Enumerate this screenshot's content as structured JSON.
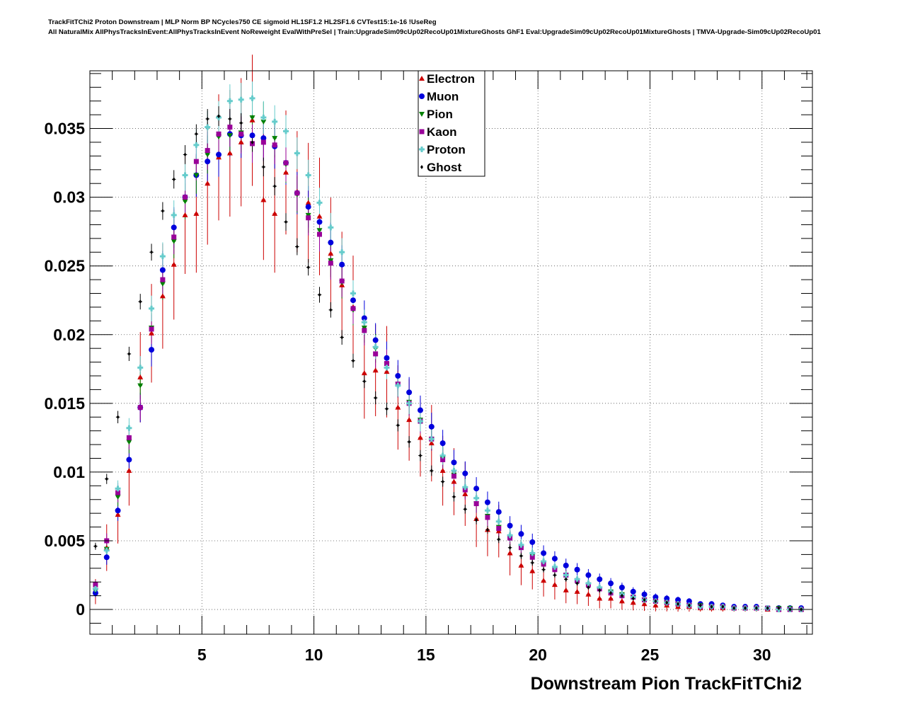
{
  "header": {
    "line1": "TrackFitTChi2 Proton Downstream | MLP Norm BP NCycles750 CE sigmoid HL1SF1.2 HL2SF1.6 CVTest15:1e-16 !UseReg",
    "line2": "All NaturalMix AllPhysTracksInEvent:AllPhysTracksInEvent NoReweight EvalWithPreSel | Train:UpgradeSim09cUp02RecoUp01MixtureGhosts GhF1 Eval:UpgradeSim09cUp02RecoUp01MixtureGhosts | TMVA-Upgrade-Sim09cUp02RecoUp01"
  },
  "chart_data": {
    "type": "scatter",
    "xlabel": "Downstream Pion TrackFitTChi2",
    "ylabel": "",
    "xlim": [
      0,
      32.25
    ],
    "ylim": [
      -0.0018,
      0.0392
    ],
    "xticks": [
      5,
      10,
      15,
      20,
      25,
      30
    ],
    "xtick_labels": [
      "5",
      "10",
      "15",
      "20",
      "25",
      "30"
    ],
    "yticks": [
      0,
      0.005,
      0.01,
      0.015,
      0.02,
      0.025,
      0.03,
      0.035
    ],
    "ytick_labels": [
      "0",
      "0.005",
      "0.01",
      "0.015",
      "0.02",
      "0.025",
      "0.03",
      "0.035"
    ],
    "grid": true,
    "legend_position": "top-center",
    "bin_width": 0.5,
    "x": [
      0.25,
      0.75,
      1.25,
      1.75,
      2.25,
      2.75,
      3.25,
      3.75,
      4.25,
      4.75,
      5.25,
      5.75,
      6.25,
      6.75,
      7.25,
      7.75,
      8.25,
      8.75,
      9.25,
      9.75,
      10.25,
      10.75,
      11.25,
      11.75,
      12.25,
      12.75,
      13.25,
      13.75,
      14.25,
      14.75,
      15.25,
      15.75,
      16.25,
      16.75,
      17.25,
      17.75,
      18.25,
      18.75,
      19.25,
      19.75,
      20.25,
      20.75,
      21.25,
      21.75,
      22.25,
      22.75,
      23.25,
      23.75,
      24.25,
      24.75,
      25.25,
      25.75,
      26.25,
      26.75,
      27.25,
      27.75,
      28.25,
      28.75,
      29.25,
      29.75,
      30.25,
      30.75,
      31.25,
      31.75
    ],
    "series": [
      {
        "name": "Electron",
        "color": "#cc0000",
        "marker": "triangle-up",
        "values": [
          0.0013,
          0.0045,
          0.0069,
          0.0101,
          0.0169,
          0.0201,
          0.0228,
          0.0251,
          0.0287,
          0.0288,
          0.031,
          0.0329,
          0.0332,
          0.034,
          0.0356,
          0.0298,
          0.0288,
          0.0318,
          0.0304,
          0.0296,
          0.0286,
          0.0259,
          0.0236,
          0.022,
          0.0172,
          0.0174,
          0.0173,
          0.0147,
          0.0138,
          0.0125,
          0.0121,
          0.0101,
          0.0093,
          0.0084,
          0.0066,
          0.0058,
          0.0057,
          0.0041,
          0.0032,
          0.0028,
          0.0021,
          0.0018,
          0.0014,
          0.0013,
          0.0011,
          0.0008,
          0.0008,
          0.0006,
          0.0005,
          0.0004,
          0.0003,
          0.0003,
          0.0002,
          0.0002,
          0.0001,
          0.0001,
          0.0001,
          0.0001,
          0.0001,
          0.0001,
          0.0,
          0.0,
          0.0,
          0.0
        ]
      },
      {
        "name": "Muon",
        "color": "#0000dd",
        "marker": "circle",
        "values": [
          0.0012,
          0.0038,
          0.0072,
          0.0109,
          0.0147,
          0.0189,
          0.0247,
          0.0278,
          0.03,
          0.0316,
          0.0326,
          0.0331,
          0.0346,
          0.0345,
          0.0345,
          0.0343,
          0.0337,
          0.0325,
          0.0303,
          0.0293,
          0.0282,
          0.0267,
          0.0251,
          0.0225,
          0.0212,
          0.0196,
          0.0183,
          0.017,
          0.0158,
          0.0145,
          0.0133,
          0.0121,
          0.0107,
          0.0099,
          0.0088,
          0.0078,
          0.0071,
          0.0061,
          0.0055,
          0.0049,
          0.0041,
          0.0037,
          0.0032,
          0.0029,
          0.0025,
          0.0022,
          0.0019,
          0.0016,
          0.0013,
          0.0011,
          0.0009,
          0.0008,
          0.0007,
          0.0006,
          0.0004,
          0.0004,
          0.0003,
          0.0002,
          0.0002,
          0.0002,
          0.0001,
          0.0001,
          0.0001,
          0.0001
        ]
      },
      {
        "name": "Pion",
        "color": "#008000",
        "marker": "triangle-down",
        "values": [
          0.0014,
          0.0044,
          0.0082,
          0.0122,
          0.0163,
          0.0205,
          0.0237,
          0.0268,
          0.0297,
          0.0316,
          0.0331,
          0.0344,
          0.0345,
          0.0347,
          0.0358,
          0.0355,
          0.0343,
          0.0324,
          0.0302,
          0.0287,
          0.0276,
          0.0254,
          0.0238,
          0.0218,
          0.0205,
          0.019,
          0.0178,
          0.0164,
          0.0151,
          0.0138,
          0.0124,
          0.011,
          0.0098,
          0.0088,
          0.0077,
          0.0068,
          0.006,
          0.0052,
          0.0045,
          0.0039,
          0.0033,
          0.0029,
          0.0025,
          0.0021,
          0.0018,
          0.0015,
          0.0013,
          0.0011,
          0.0009,
          0.0007,
          0.0006,
          0.0005,
          0.0004,
          0.0003,
          0.0003,
          0.0002,
          0.0002,
          0.0001,
          0.0001,
          0.0001,
          0.0001,
          0.0001,
          0.0001,
          0.0
        ]
      },
      {
        "name": "Kaon",
        "color": "#990099",
        "marker": "square",
        "values": [
          0.0018,
          0.005,
          0.0085,
          0.0125,
          0.0147,
          0.0204,
          0.024,
          0.0271,
          0.03,
          0.0326,
          0.0334,
          0.0346,
          0.0351,
          0.0346,
          0.0339,
          0.034,
          0.0338,
          0.0325,
          0.0303,
          0.0285,
          0.0273,
          0.0252,
          0.0239,
          0.0219,
          0.0203,
          0.0186,
          0.0179,
          0.0164,
          0.015,
          0.0137,
          0.0124,
          0.0109,
          0.0097,
          0.0087,
          0.0077,
          0.0067,
          0.0059,
          0.0052,
          0.0045,
          0.0038,
          0.0033,
          0.0029,
          0.0025,
          0.0021,
          0.0018,
          0.0015,
          0.0012,
          0.001,
          0.0009,
          0.0007,
          0.0006,
          0.0005,
          0.0004,
          0.0003,
          0.0002,
          0.0002,
          0.0002,
          0.0001,
          0.0001,
          0.0001,
          0.0001,
          0.0,
          0.0,
          0.0
        ]
      },
      {
        "name": "Proton",
        "color": "#66cccc",
        "marker": "plus",
        "values": [
          0.0015,
          0.0043,
          0.0088,
          0.0132,
          0.0176,
          0.0219,
          0.0257,
          0.0287,
          0.0316,
          0.0338,
          0.0351,
          0.0358,
          0.037,
          0.0371,
          0.0372,
          0.0358,
          0.0355,
          0.0348,
          0.0332,
          0.0316,
          0.0296,
          0.0278,
          0.026,
          0.023,
          0.0209,
          0.0191,
          0.0176,
          0.0163,
          0.015,
          0.0137,
          0.0124,
          0.0112,
          0.0101,
          0.0089,
          0.0081,
          0.0072,
          0.0064,
          0.0054,
          0.0047,
          0.0041,
          0.0035,
          0.0031,
          0.0025,
          0.0022,
          0.0019,
          0.0016,
          0.0013,
          0.0011,
          0.0009,
          0.0007,
          0.0006,
          0.0005,
          0.0004,
          0.0003,
          0.0002,
          0.0002,
          0.0002,
          0.0001,
          0.0001,
          0.0001,
          0.0001,
          0.0,
          0.0,
          0.0
        ]
      },
      {
        "name": "Ghost",
        "color": "#000000",
        "marker": "diamond",
        "values": [
          0.0046,
          0.0095,
          0.014,
          0.0186,
          0.0224,
          0.026,
          0.029,
          0.0313,
          0.0331,
          0.0346,
          0.0357,
          0.0359,
          0.0357,
          0.0354,
          0.034,
          0.0322,
          0.0308,
          0.0282,
          0.0264,
          0.0249,
          0.0229,
          0.0218,
          0.0198,
          0.0181,
          0.0166,
          0.0154,
          0.0146,
          0.0134,
          0.0122,
          0.0112,
          0.0101,
          0.0093,
          0.0082,
          0.0073,
          0.0065,
          0.0058,
          0.0051,
          0.0045,
          0.0039,
          0.0034,
          0.0029,
          0.0025,
          0.0022,
          0.0019,
          0.0016,
          0.0014,
          0.0012,
          0.001,
          0.0008,
          0.0007,
          0.0006,
          0.0005,
          0.0004,
          0.0003,
          0.0003,
          0.0002,
          0.0002,
          0.0001,
          0.0001,
          0.0001,
          0.0001,
          0.0001,
          0.0,
          0.0
        ]
      }
    ]
  }
}
